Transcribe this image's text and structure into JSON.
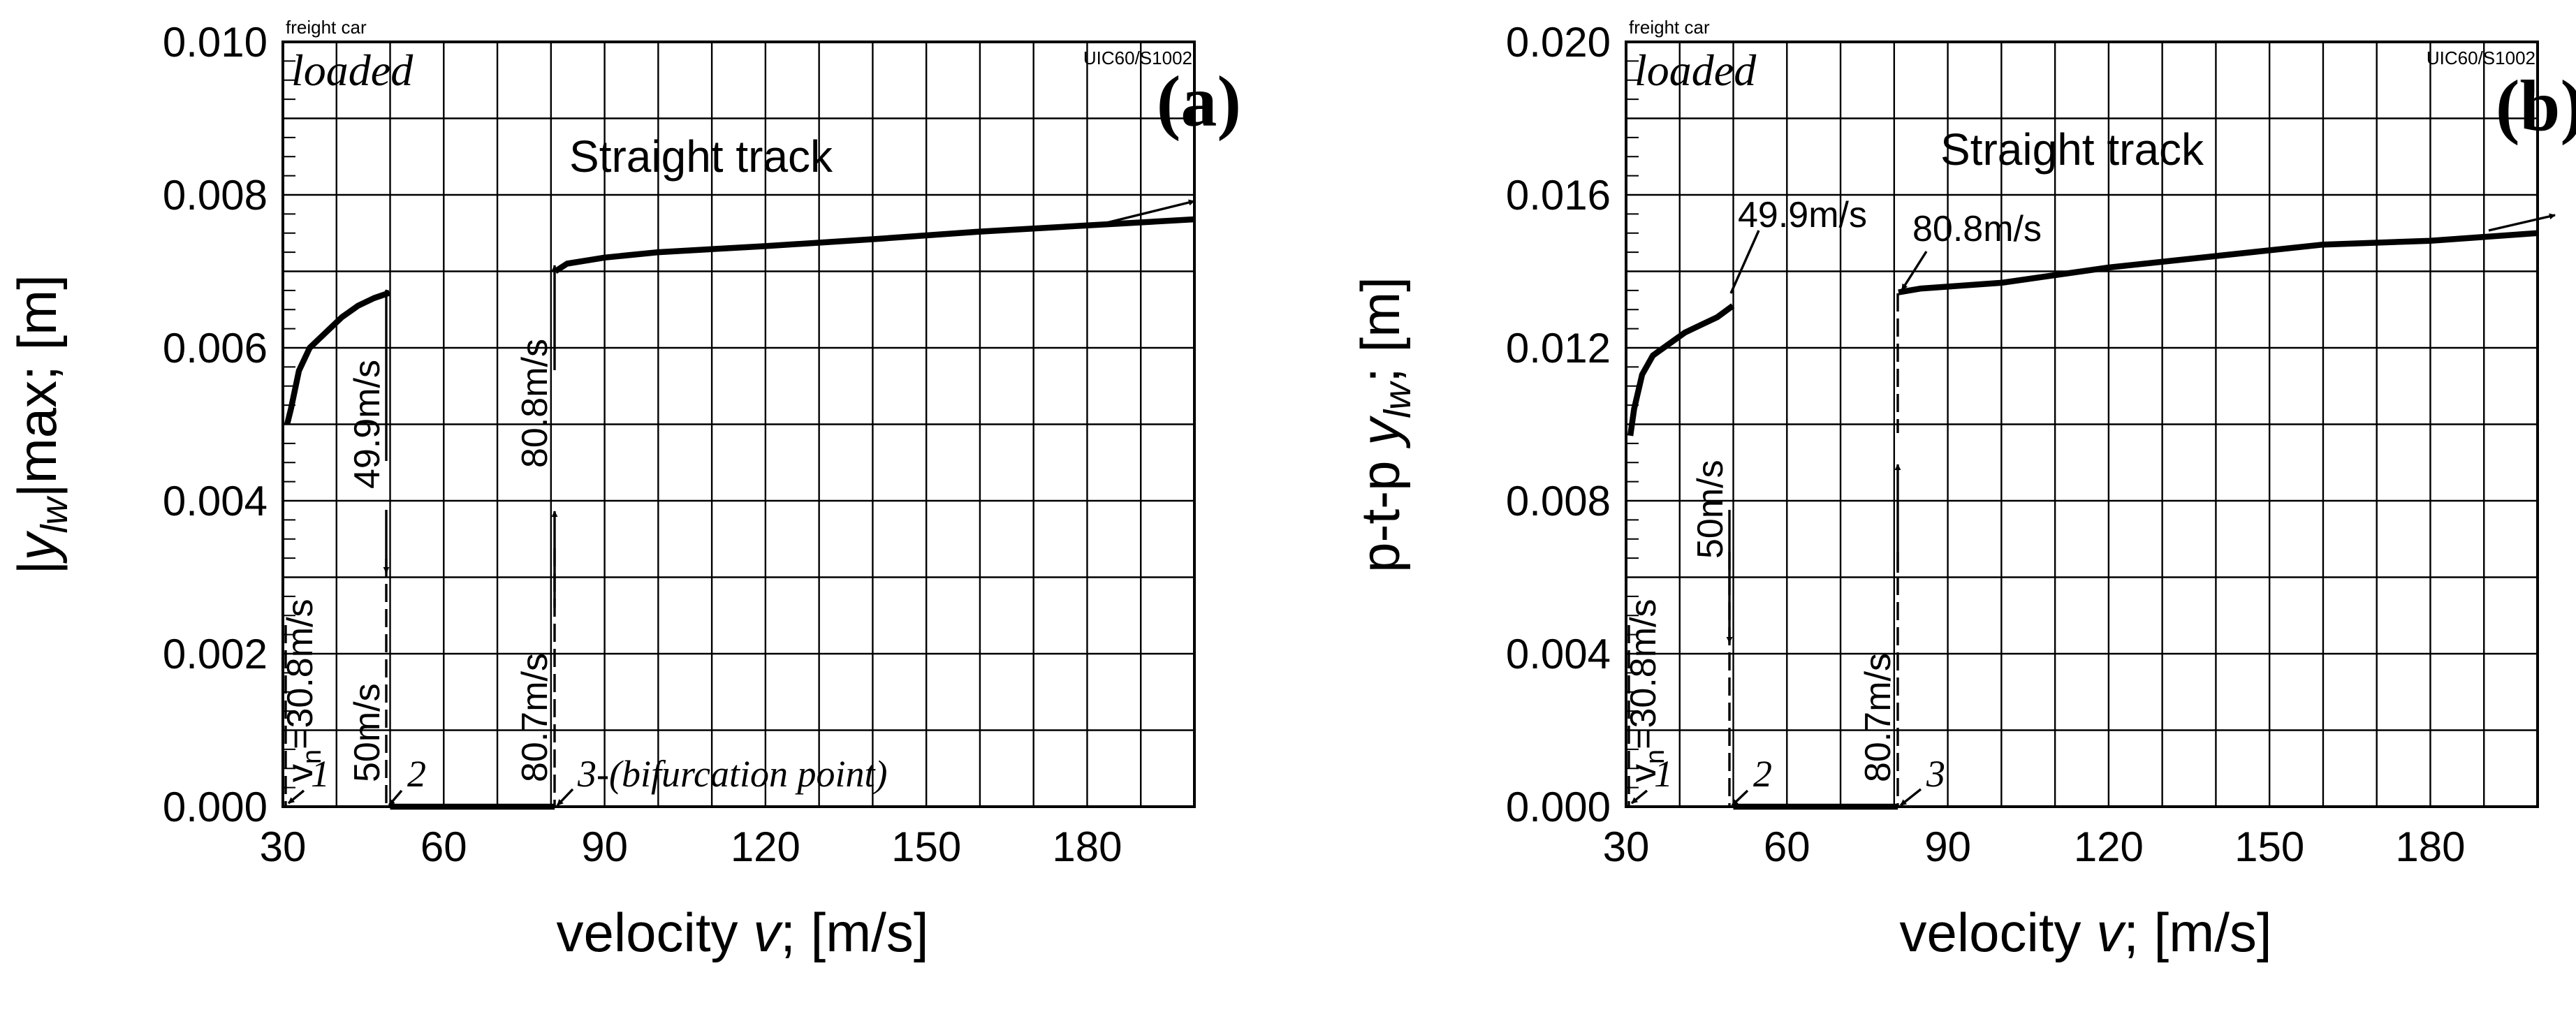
{
  "chart_data": [
    {
      "type": "line",
      "panel_label": "(a)",
      "header": "freight car",
      "profile": "UIC60/S1002",
      "condition": "loaded",
      "track_label": "Straight track",
      "xlabel": "velocity v; [m/s]",
      "ylabel": "|ylw|max; [m]",
      "ylabel_parts": {
        "pre": "|",
        "var": "y",
        "sub": "lw",
        "post": "|max; [m]"
      },
      "xlabel_parts": {
        "pre": "velocity ",
        "var": "v",
        "post": "; [m/s]"
      },
      "xlim": [
        30,
        200
      ],
      "ylim": [
        0,
        0.01
      ],
      "x_ticks": [
        30,
        60,
        90,
        120,
        150,
        180
      ],
      "x_tick_labels": [
        "30",
        "60",
        "90",
        "120",
        "150",
        "180"
      ],
      "y_ticks": [
        0,
        0.002,
        0.004,
        0.006,
        0.008,
        0.01
      ],
      "y_tick_labels": [
        "0.000",
        "0.002",
        "0.004",
        "0.006",
        "0.008",
        "0.010"
      ],
      "series": [
        {
          "name": "branch-1",
          "x": [
            30.8,
            31.5,
            33,
            35,
            38,
            41,
            44,
            47,
            49.9
          ],
          "y": [
            0.005,
            0.0052,
            0.0057,
            0.006,
            0.0062,
            0.0064,
            0.00655,
            0.00665,
            0.00672
          ]
        },
        {
          "name": "branch-zero",
          "x": [
            50,
            80.7
          ],
          "y": [
            0,
            0
          ]
        },
        {
          "name": "branch-2",
          "x": [
            80.8,
            83,
            90,
            100,
            120,
            140,
            160,
            180,
            200
          ],
          "y": [
            0.007,
            0.0071,
            0.00718,
            0.00725,
            0.00733,
            0.00742,
            0.00752,
            0.0076,
            0.00768
          ]
        }
      ],
      "annotations": {
        "vn": "vn=30.8m/s",
        "vn_parts": {
          "v": "v",
          "sub": "n",
          "rest": "=30.8m/s"
        },
        "v50": "50m/s",
        "v499": "49.9m/s",
        "v807": "80.7m/s",
        "v808": "80.8m/s",
        "p1": "1",
        "p2": "2",
        "p3": "3-(bifurcation point)"
      }
    },
    {
      "type": "line",
      "panel_label": "(b)",
      "header": "freight car",
      "profile": "UIC60/S1002",
      "condition": "loaded",
      "track_label": "Straight track",
      "xlabel": "velocity v; [m/s]",
      "ylabel": "p-t-p ylw; [m]",
      "ylabel_parts": {
        "pre": "p-t-p ",
        "var": "y",
        "sub": "lw",
        "post": "; [m]"
      },
      "xlabel_parts": {
        "pre": "velocity ",
        "var": "v",
        "post": "; [m/s]"
      },
      "xlim": [
        30,
        200
      ],
      "ylim": [
        0,
        0.02
      ],
      "x_ticks": [
        30,
        60,
        90,
        120,
        150,
        180
      ],
      "x_tick_labels": [
        "30",
        "60",
        "90",
        "120",
        "150",
        "180"
      ],
      "y_ticks": [
        0,
        0.004,
        0.008,
        0.012,
        0.016,
        0.02
      ],
      "y_tick_labels": [
        "0.000",
        "0.004",
        "0.008",
        "0.012",
        "0.016",
        "0.020"
      ],
      "series": [
        {
          "name": "branch-1",
          "x": [
            30.8,
            31.5,
            33,
            35,
            38,
            41,
            44,
            47,
            49.9
          ],
          "y": [
            0.0097,
            0.0104,
            0.0113,
            0.0118,
            0.0121,
            0.0124,
            0.0126,
            0.0128,
            0.0131
          ]
        },
        {
          "name": "branch-zero",
          "x": [
            50,
            80.7
          ],
          "y": [
            0,
            0
          ]
        },
        {
          "name": "branch-2",
          "x": [
            80.8,
            85,
            90,
            100,
            120,
            140,
            160,
            180,
            200
          ],
          "y": [
            0.01345,
            0.01355,
            0.0136,
            0.0137,
            0.0141,
            0.0144,
            0.0147,
            0.0148,
            0.015
          ]
        }
      ],
      "annotations": {
        "vn": "vn=30.8m/s",
        "vn_parts": {
          "v": "v",
          "sub": "n",
          "rest": "=30.8m/s"
        },
        "v50": "50m/s",
        "v499": "49.9m/s",
        "v807": "80.7m/s",
        "v808": "80.8m/s",
        "p1": "1",
        "p2": "2",
        "p3": "3"
      }
    }
  ]
}
